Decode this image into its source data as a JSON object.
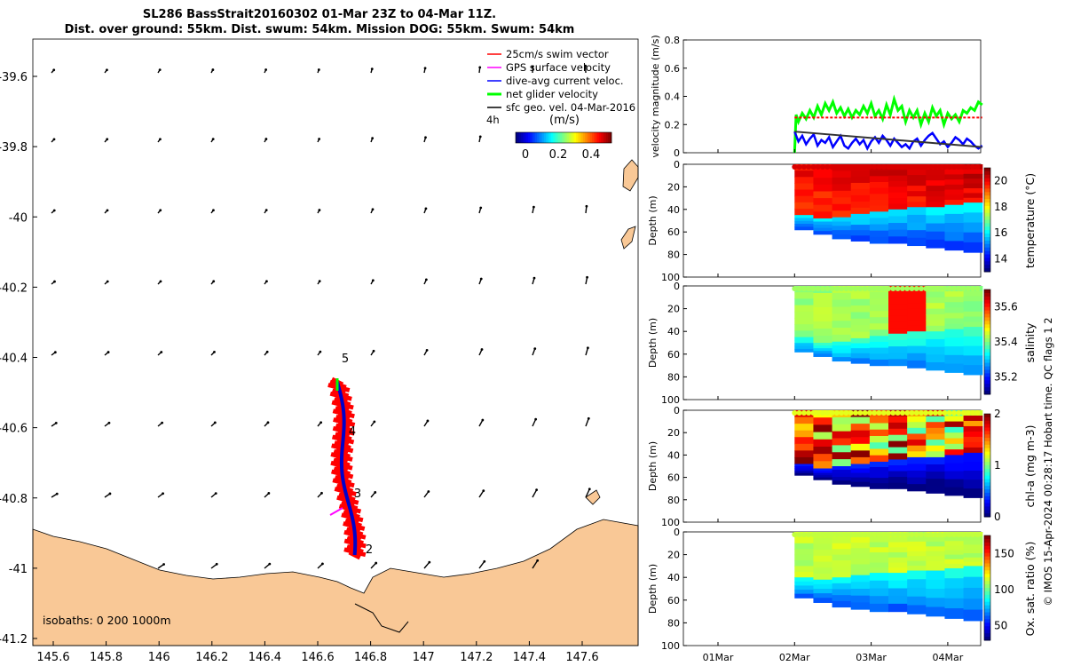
{
  "title": {
    "line1": "SL286 BassStrait20160302 01-Mar 23Z to 04-Mar 11Z.",
    "line2": "Dist. over ground: 55km. Dist. swum: 54km. Mission DOG: 55km. Swum: 54km"
  },
  "map": {
    "legend": [
      {
        "label": "25cm/s swim vector",
        "color": "#ff0000"
      },
      {
        "label": "GPS surface velocity",
        "color": "#ff00ff"
      },
      {
        "label": "dive-avg current veloc.",
        "color": "#0000ff"
      },
      {
        "label": "net glider velocity",
        "color": "#00ff00"
      },
      {
        "label": "sfc geo. vel. 04-Mar-2016",
        "color": "#000000"
      }
    ],
    "legend_side_label": "4h",
    "colorbar_label": "(m/s)",
    "colorbar_ticks": [
      "0",
      "0.2",
      "0.4"
    ],
    "isobaths_label": "isobaths: 0   200  1000m",
    "xticks": [
      "145.6",
      "145.8",
      "146",
      "146.2",
      "146.4",
      "146.6",
      "146.8",
      "147",
      "147.2",
      "147.4",
      "147.6"
    ],
    "yticks": [
      "-39.6",
      "-39.8",
      "-40",
      "-40.2",
      "-40.4",
      "-40.6",
      "-40.8",
      "-41",
      "-41.2"
    ],
    "waypoint_labels": [
      "5",
      "4",
      "3",
      "2"
    ],
    "land_color": "#f9c896",
    "track_color": "#ff0000"
  },
  "chart_data": [
    {
      "type": "line",
      "ylabel": "velocity magnitude (m/s)",
      "ylim": [
        0,
        0.8
      ],
      "yticks": [
        "0",
        "0.2",
        "0.4",
        "0.6",
        "0.8"
      ],
      "x_days": [
        "01Mar",
        "02Mar",
        "03Mar",
        "04Mar"
      ],
      "series": [
        {
          "color": "#00ff00",
          "x": [
            2.0,
            2.02,
            2.05,
            2.1,
            2.15,
            2.2,
            2.25,
            2.3,
            2.35,
            2.4,
            2.45,
            2.5,
            2.55,
            2.6,
            2.65,
            2.7,
            2.75,
            2.8,
            2.85,
            2.9,
            2.95,
            3.0,
            3.05,
            3.1,
            3.15,
            3.2,
            3.25,
            3.3,
            3.35,
            3.4,
            3.45,
            3.5,
            3.55,
            3.6,
            3.65,
            3.7,
            3.75,
            3.8,
            3.85,
            3.9,
            3.95,
            4.0,
            4.05,
            4.1,
            4.15,
            4.2,
            4.25,
            4.3,
            4.35,
            4.4,
            4.45
          ],
          "y": [
            0.0,
            0.27,
            0.22,
            0.28,
            0.24,
            0.3,
            0.25,
            0.33,
            0.27,
            0.35,
            0.3,
            0.36,
            0.28,
            0.32,
            0.26,
            0.31,
            0.25,
            0.3,
            0.27,
            0.33,
            0.28,
            0.35,
            0.26,
            0.3,
            0.24,
            0.34,
            0.27,
            0.38,
            0.3,
            0.33,
            0.22,
            0.3,
            0.25,
            0.3,
            0.2,
            0.28,
            0.22,
            0.32,
            0.26,
            0.3,
            0.2,
            0.28,
            0.24,
            0.27,
            0.22,
            0.3,
            0.28,
            0.32,
            0.3,
            0.36,
            0.34
          ]
        },
        {
          "color": "#0000ff",
          "x": [
            2.0,
            2.05,
            2.1,
            2.15,
            2.2,
            2.25,
            2.3,
            2.35,
            2.4,
            2.45,
            2.5,
            2.55,
            2.6,
            2.65,
            2.7,
            2.75,
            2.8,
            2.85,
            2.9,
            2.95,
            3.0,
            3.05,
            3.1,
            3.15,
            3.2,
            3.25,
            3.3,
            3.35,
            3.4,
            3.45,
            3.5,
            3.55,
            3.6,
            3.65,
            3.7,
            3.75,
            3.8,
            3.85,
            3.9,
            3.95,
            4.0,
            4.05,
            4.1,
            4.15,
            4.2,
            4.25,
            4.3,
            4.35,
            4.4,
            4.45
          ],
          "y": [
            0.15,
            0.08,
            0.12,
            0.06,
            0.1,
            0.13,
            0.05,
            0.09,
            0.07,
            0.11,
            0.04,
            0.08,
            0.12,
            0.05,
            0.03,
            0.07,
            0.1,
            0.06,
            0.09,
            0.03,
            0.08,
            0.11,
            0.07,
            0.12,
            0.09,
            0.05,
            0.1,
            0.07,
            0.04,
            0.06,
            0.03,
            0.08,
            0.1,
            0.05,
            0.09,
            0.12,
            0.14,
            0.1,
            0.06,
            0.08,
            0.04,
            0.07,
            0.11,
            0.09,
            0.06,
            0.1,
            0.08,
            0.05,
            0.03,
            0.05
          ]
        },
        {
          "color": "#ff0000",
          "x": [
            2.0,
            4.45
          ],
          "y": [
            0.25,
            0.25
          ]
        },
        {
          "color": "#333333",
          "x": [
            2.0,
            4.45
          ],
          "y": [
            0.15,
            0.04
          ]
        }
      ]
    },
    {
      "type": "heatmap",
      "ylabel": "Depth (m)",
      "cbar_label": "temperature (°C)",
      "yticks": [
        "0",
        "20",
        "40",
        "60",
        "80",
        "100"
      ],
      "cbar_ticks": [
        "14",
        "16",
        "18",
        "20"
      ],
      "clim": [
        13,
        21
      ],
      "ylim": [
        0,
        100
      ],
      "x_days": [
        "01Mar",
        "02Mar",
        "03Mar",
        "04Mar"
      ],
      "mixed_layer": [
        45,
        48,
        47,
        44,
        42,
        40,
        38,
        38,
        36,
        34
      ],
      "upper_value": 19.5,
      "lower_value": 15.8,
      "bottom_depth": [
        58,
        62,
        66,
        68,
        70,
        70,
        72,
        74,
        76,
        78
      ]
    },
    {
      "type": "heatmap",
      "ylabel": "Depth (m)",
      "cbar_label": "salinity",
      "yticks": [
        "0",
        "20",
        "40",
        "60",
        "80",
        "100"
      ],
      "cbar_ticks": [
        "35.2",
        "35.4",
        "35.6"
      ],
      "clim": [
        35.1,
        35.7
      ],
      "ylim": [
        0,
        100
      ],
      "x_days": [
        "01Mar",
        "02Mar",
        "03Mar",
        "04Mar"
      ],
      "mixed_layer": [
        45,
        50,
        49,
        46,
        44,
        42,
        40,
        40,
        38,
        36
      ],
      "upper_value": 35.42,
      "lower_value": 35.35,
      "bottom_depth": [
        58,
        62,
        66,
        68,
        70,
        70,
        72,
        74,
        76,
        78
      ]
    },
    {
      "type": "heatmap",
      "ylabel": "Depth (m)",
      "cbar_label": "chl-a (mg m-3)",
      "yticks": [
        "0",
        "20",
        "40",
        "60",
        "80",
        "100"
      ],
      "cbar_ticks": [
        "0",
        "1",
        "2"
      ],
      "clim": [
        0,
        2
      ],
      "ylim": [
        0,
        100
      ],
      "x_days": [
        "01Mar",
        "02Mar",
        "03Mar",
        "04Mar"
      ],
      "mixed_layer": [
        48,
        52,
        50,
        48,
        46,
        44,
        42,
        42,
        40,
        38
      ],
      "upper_value": 1.2,
      "lower_value": 0.3,
      "bottom_depth": [
        58,
        62,
        66,
        68,
        70,
        70,
        72,
        74,
        76,
        78
      ]
    },
    {
      "type": "heatmap",
      "ylabel": "Depth (m)",
      "cbar_label": "Ox. sat. ratio (%)",
      "yticks": [
        "0",
        "20",
        "40",
        "60",
        "80",
        "100"
      ],
      "cbar_ticks": [
        "50",
        "100",
        "150"
      ],
      "clim": [
        30,
        175
      ],
      "ylim": [
        0,
        100
      ],
      "x_days": [
        "01Mar",
        "02Mar",
        "03Mar",
        "04Mar"
      ],
      "mixed_layer": [
        40,
        42,
        40,
        38,
        36,
        36,
        34,
        34,
        32,
        30
      ],
      "upper_value": 112,
      "lower_value": 85,
      "bottom_depth": [
        58,
        62,
        66,
        68,
        70,
        70,
        72,
        74,
        76,
        78
      ]
    }
  ],
  "side_note": "© IMOS 15-Apr-2024 00:28:17 Hobart time. QC flags 1  2"
}
